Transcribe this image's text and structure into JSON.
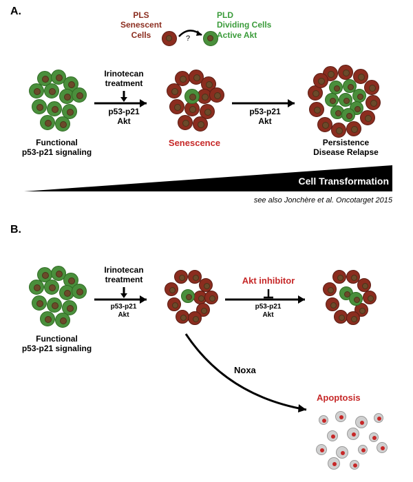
{
  "colors": {
    "green_cell": "#4a8f3c",
    "green_cell_dark": "#2e6b23",
    "red_cell": "#8b2d1f",
    "red_cell_dark": "#5a1c13",
    "nucleus": "#6b4a2a",
    "nucleus_dark": "#4a3218",
    "black": "#000000",
    "red_text": "#c62828",
    "green_text": "#3a9b3a",
    "gray_apop": "#d0d0d0",
    "red_apop": "#c62828"
  },
  "panelA": {
    "letter": "A.",
    "pls_label1": "PLS",
    "pls_label2": "Senescent",
    "pls_label3": "Cells",
    "pld_label1": "PLD",
    "pld_label2": "Dividing Cells",
    "pld_label3": "Active Akt",
    "irinotecan": "Irinotecan",
    "treatment": "treatment",
    "p53_p21": "p53-p21",
    "akt": "Akt",
    "functional": "Functional",
    "p53_signaling": "p53-p21 signaling",
    "senescence": "Senescence",
    "persistence": "Persistence",
    "relapse": "Disease Relapse",
    "transformation": "Cell Transformation",
    "citation": "see also Jonchère et al. Oncotarget 2015"
  },
  "panelB": {
    "letter": "B.",
    "irinotecan": "Irinotecan",
    "treatment": "treatment",
    "p53_p21": "p53-p21",
    "akt": "Akt",
    "functional": "Functional",
    "p53_signaling": "p53-p21 signaling",
    "akt_inhibitor": "Akt inhibitor",
    "noxa": "Noxa",
    "apoptosis": "Apoptosis"
  },
  "geometry": {
    "cell_r": 11,
    "nucleus_r": 5,
    "small_cell_r": 8,
    "small_nucleus_r": 3.5
  }
}
